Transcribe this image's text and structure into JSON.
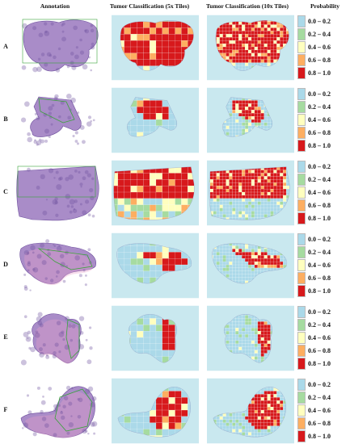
{
  "headers": {
    "annotation": "Annotation",
    "tiles5x": "Tumor Classification (5x Tiles)",
    "tiles10x": "Tumor Classification (10x Tiles)",
    "probability": "Probability"
  },
  "legend": [
    {
      "label": "0.0 – 0.2",
      "color": "#abd9e9"
    },
    {
      "label": "0.2 – 0.4",
      "color": "#a6dba0"
    },
    {
      "label": "0.4 – 0.6",
      "color": "#ffffbf"
    },
    {
      "label": "0.6 – 0.8",
      "color": "#fdae61"
    },
    {
      "label": "0.8 – 1.0",
      "color": "#d7191c"
    }
  ],
  "rows": [
    {
      "id": "A"
    },
    {
      "id": "B"
    },
    {
      "id": "C"
    },
    {
      "id": "D"
    },
    {
      "id": "E"
    },
    {
      "id": "F"
    }
  ],
  "colors": {
    "tissue": "#a98cc8",
    "tissue_dark": "#6e4f9e",
    "tissue_pink": "#e8a0c8",
    "heatmap_bg": "#c9e8ef",
    "annotation_line": "#3aa33a"
  }
}
